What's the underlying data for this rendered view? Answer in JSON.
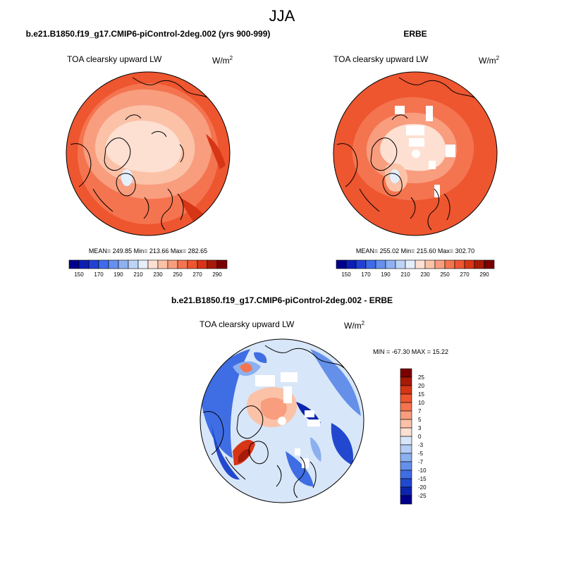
{
  "figure": {
    "season": "JJA",
    "variable_label": "TOA clearsky upward LW",
    "units_base": "W/m",
    "units_exp": "2"
  },
  "panels": [
    {
      "title": "b.e21.B1850.f19_g17.CMIP6-piControl-2deg.002 (yrs 900-999)",
      "stats": "MEAN= 249.85  Min= 213.66  Max= 282.65",
      "colorbar_labels": [
        "150",
        "170",
        "190",
        "210",
        "230",
        "250",
        "270",
        "290"
      ]
    },
    {
      "title": "ERBE",
      "stats": "MEAN= 255.02  Min= 215.60  Max= 302.70",
      "colorbar_labels": [
        "150",
        "170",
        "190",
        "210",
        "230",
        "250",
        "270",
        "290"
      ]
    },
    {
      "title": "b.e21.B1850.f19_g17.CMIP6-piControl-2deg.002 - ERBE",
      "stats": "MIN = -67.30 MAX =  15.22",
      "colorbar_labels": [
        "25",
        "20",
        "15",
        "10",
        "7",
        "5",
        "3",
        "0",
        "-3",
        "-5",
        "-7",
        "-10",
        "-15",
        "-20",
        "-25"
      ]
    }
  ],
  "colors": {
    "abs_scale": [
      "#00008b",
      "#0c1eb4",
      "#2141d3",
      "#3f6be8",
      "#6590ee",
      "#8fb1f1",
      "#bdd4f6",
      "#e5eefb",
      "#fde0d2",
      "#fbc2a8",
      "#f89d7e",
      "#f4744f",
      "#ee5630",
      "#d63516",
      "#a81a08",
      "#7a0000"
    ],
    "diff_scale": [
      "#7a0000",
      "#a81a08",
      "#d63516",
      "#ee5630",
      "#f4744f",
      "#f89d7e",
      "#fbc2a8",
      "#fde0d2",
      "#d8e6f9",
      "#b3cdf4",
      "#8bb0ef",
      "#6490ea",
      "#3f6de3",
      "#2148cf",
      "#0d24ae",
      "#00008b"
    ]
  }
}
